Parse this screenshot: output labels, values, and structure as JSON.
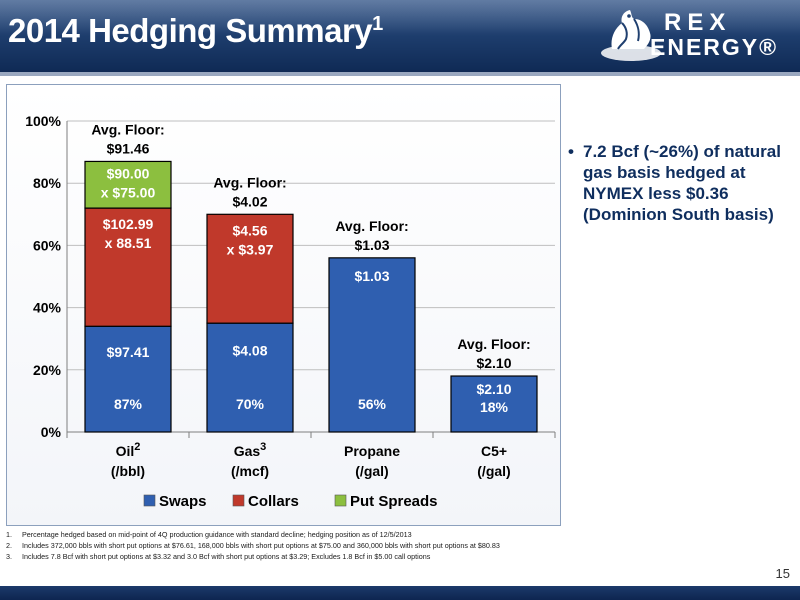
{
  "header": {
    "title": "2014 Hedging Summary",
    "title_superscript": "1",
    "logo_text_top": "REX",
    "logo_text_bottom": "ENERGY®"
  },
  "chart_data": {
    "type": "bar",
    "stacked": true,
    "categories": [
      "Oil",
      "Gas",
      "Propane",
      "C5+"
    ],
    "category_superscripts": [
      "2",
      "3",
      "",
      ""
    ],
    "category_units": [
      "(/bbl)",
      "(/mcf)",
      "(/gal)",
      "(/gal)"
    ],
    "ylim": [
      0,
      100
    ],
    "yticks": [
      "0%",
      "20%",
      "40%",
      "60%",
      "80%",
      "100%"
    ],
    "grid": true,
    "legend_position": "bottom",
    "series": [
      {
        "name": "Swaps",
        "color": "#2f5fb0",
        "values": [
          34,
          35,
          56,
          18
        ],
        "labels": [
          "$97.41",
          "$4.08",
          "$1.03",
          "$2.10"
        ]
      },
      {
        "name": "Collars",
        "color": "#c0392b",
        "values": [
          38,
          35,
          0,
          0
        ],
        "labels_line1": [
          "$102.99",
          "$4.56",
          "",
          ""
        ],
        "labels_line2": [
          "x 88.51",
          "x $3.97",
          "",
          ""
        ]
      },
      {
        "name": "Put Spreads",
        "color": "#8cbf3f",
        "values": [
          15,
          0,
          0,
          0
        ],
        "labels_line1": [
          "$90.00",
          "",
          "",
          ""
        ],
        "labels_line2": [
          "x $75.00",
          "",
          "",
          ""
        ]
      }
    ],
    "total_labels": [
      "87%",
      "70%",
      "56%",
      "18%"
    ],
    "floor_label": "Avg. Floor:",
    "floor_values": [
      "$91.46",
      "$4.02",
      "$1.03",
      "$2.10"
    ]
  },
  "bullet": {
    "marker": "•",
    "text": "7.2 Bcf (~26%) of natural gas basis hedged at NYMEX less $0.36 (Dominion South basis)"
  },
  "footnotes": [
    {
      "num": "1.",
      "text": "Percentage hedged based on mid-point of 4Q production guidance with standard decline; hedging position as of 12/5/2013"
    },
    {
      "num": "2.",
      "text": "Includes 372,000 bbls with short put options at $76.61, 168,000 bbls with short put options at $75.00 and 360,000 bbls with short put options at $80.83"
    },
    {
      "num": "3.",
      "text": "Includes 7.8 Bcf with short put options at $3.32 and 3.0  Bcf with short put options at $3.29; Excludes 1.8 Bcf in $5.00 call options"
    }
  ],
  "page_number": "15"
}
